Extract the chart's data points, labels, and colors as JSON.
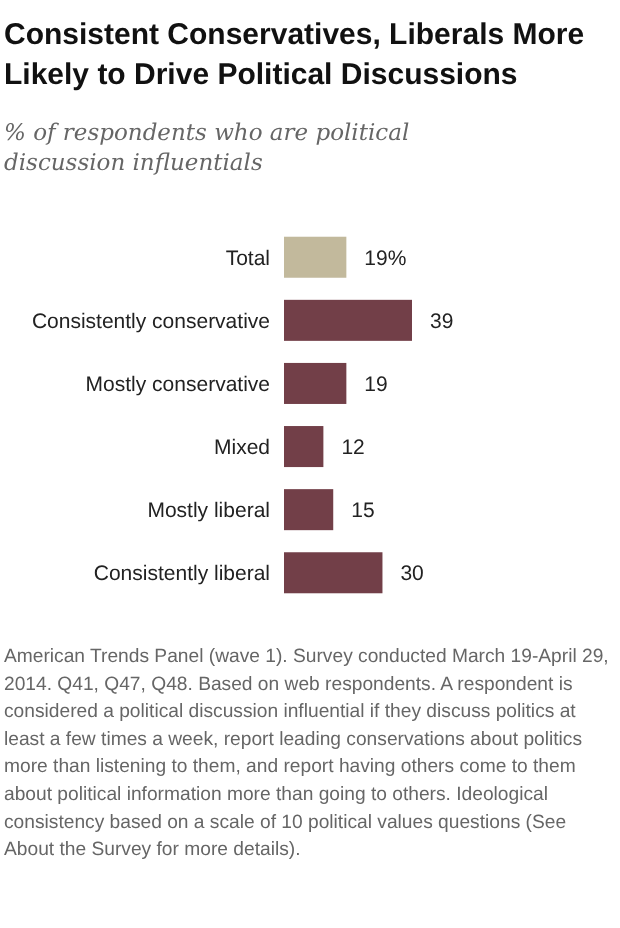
{
  "chart_data": {
    "type": "bar",
    "orientation": "horizontal",
    "title": "Consistent Conservatives, Liberals More Likely to Drive Political Discussions",
    "subtitle": "% of respondents who are political discussion influentials",
    "categories": [
      "Total",
      "Consistently conservative",
      "Mostly conservative",
      "Mixed",
      "Mostly liberal",
      "Consistently liberal"
    ],
    "values": [
      19,
      39,
      19,
      12,
      15,
      30
    ],
    "value_labels": [
      "19%",
      "39",
      "19",
      "12",
      "15",
      "30"
    ],
    "colors": [
      "#c2b99c",
      "#723f48",
      "#723f48",
      "#723f48",
      "#723f48",
      "#723f48"
    ],
    "annotations": [
      "American Trends Panel (wave 1). Survey conducted March 19-April 29, 2014. Q41, Q47, Q48. Based on web respondents. A respondent is considered a political discussion influential if they discuss politics at least a few times a week, report leading conservations about politics more than listening to them, and report having others come to them about political information more than going to others. Ideological consistency based on a scale of 10 political values questions (See About the Survey for more details)."
    ]
  }
}
